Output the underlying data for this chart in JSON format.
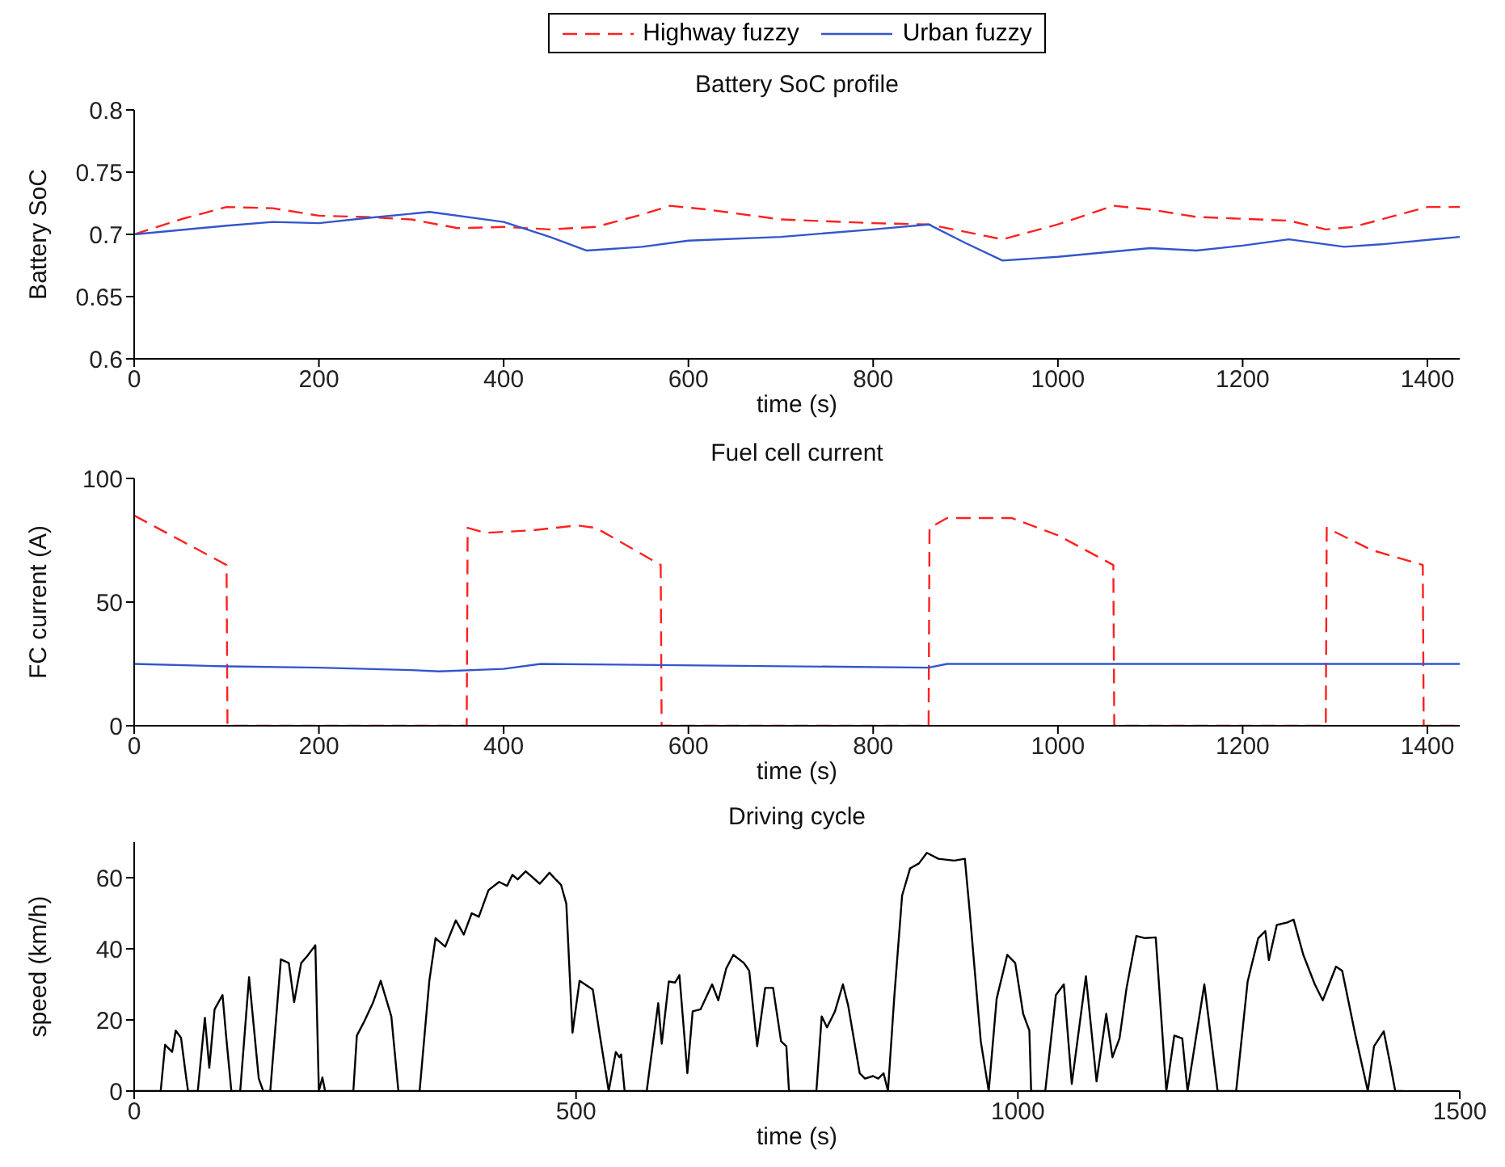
{
  "chart_data": [
    {
      "type": "line",
      "title": "Battery SoC profile",
      "xlabel": "time (s)",
      "ylabel": "Battery SoC",
      "xlim": [
        0,
        1435
      ],
      "xticks": [
        0,
        200,
        400,
        600,
        800,
        1000,
        1200,
        1400
      ],
      "ylim": [
        0.6,
        0.8
      ],
      "yticks": [
        0.6,
        0.65,
        0.7,
        0.75,
        0.8
      ],
      "legend": "top",
      "series": [
        {
          "name": "Highway fuzzy",
          "color": "#ff2020",
          "line_style": "dashed",
          "x": [
            0,
            50,
            100,
            150,
            200,
            250,
            300,
            350,
            400,
            450,
            500,
            550,
            580,
            620,
            700,
            800,
            860,
            900,
            940,
            1000,
            1060,
            1100,
            1150,
            1250,
            1290,
            1320,
            1400,
            1435
          ],
          "values": [
            0.7,
            0.712,
            0.722,
            0.721,
            0.715,
            0.714,
            0.712,
            0.705,
            0.706,
            0.704,
            0.706,
            0.716,
            0.723,
            0.72,
            0.712,
            0.709,
            0.708,
            0.702,
            0.696,
            0.708,
            0.723,
            0.72,
            0.714,
            0.711,
            0.704,
            0.706,
            0.722,
            0.722
          ]
        },
        {
          "name": "Urban fuzzy",
          "color": "#3355cc",
          "line_style": "solid",
          "x": [
            0,
            100,
            150,
            200,
            250,
            320,
            400,
            450,
            490,
            550,
            600,
            700,
            800,
            860,
            900,
            940,
            1000,
            1100,
            1150,
            1200,
            1250,
            1310,
            1350,
            1435
          ],
          "values": [
            0.7,
            0.707,
            0.71,
            0.709,
            0.713,
            0.718,
            0.71,
            0.698,
            0.687,
            0.69,
            0.695,
            0.698,
            0.704,
            0.708,
            0.693,
            0.679,
            0.682,
            0.689,
            0.687,
            0.691,
            0.696,
            0.69,
            0.692,
            0.698
          ]
        }
      ]
    },
    {
      "type": "line",
      "title": "Fuel cell current",
      "xlabel": "time (s)",
      "ylabel": "FC current (A)",
      "xlim": [
        0,
        1435
      ],
      "xticks": [
        0,
        200,
        400,
        600,
        800,
        1000,
        1200,
        1400
      ],
      "ylim": [
        0,
        100
      ],
      "yticks": [
        0,
        50,
        100
      ],
      "series": [
        {
          "color": "#ff2020",
          "line_style": "dashed",
          "x": [
            0,
            50,
            100,
            101,
            360,
            361,
            380,
            430,
            480,
            500,
            570,
            571,
            860,
            861,
            880,
            950,
            1000,
            1060,
            1061,
            1290,
            1291,
            1340,
            1395,
            1396,
            1435
          ],
          "values": [
            85,
            75,
            65,
            0,
            0,
            80,
            78,
            79,
            81,
            80,
            65,
            0,
            0,
            80,
            84,
            84,
            77,
            65,
            0,
            0,
            80,
            71,
            65,
            0,
            0
          ]
        },
        {
          "color": "#3355cc",
          "line_style": "solid",
          "x": [
            0,
            100,
            200,
            300,
            330,
            400,
            440,
            860,
            880,
            1435
          ],
          "values": [
            25,
            24,
            23.5,
            22.5,
            22,
            23,
            25,
            23.5,
            25,
            25
          ]
        }
      ]
    },
    {
      "type": "line",
      "title": "Driving cycle",
      "xlabel": "time (s)",
      "ylabel": "speed (km/h)",
      "xlim": [
        0,
        1500
      ],
      "xticks": [
        0,
        500,
        1000,
        1500
      ],
      "ylim": [
        0,
        70
      ],
      "yticks": [
        0,
        20,
        40,
        60
      ],
      "series": [
        {
          "color": "#000000",
          "line_style": "solid",
          "x": [
            0,
            30,
            35,
            43,
            47,
            53,
            59,
            61,
            72,
            80,
            85,
            91,
            100,
            104,
            110,
            120,
            130,
            141,
            146,
            154,
            166,
            175,
            181,
            189,
            196,
            205,
            209,
            213,
            216,
            248,
            252,
            260,
            270,
            279,
            285,
            291,
            299,
            323,
            334,
            341,
            352,
            364,
            373,
            382,
            390,
            401,
            413,
            422,
            428,
            434,
            443,
            459,
            470,
            477,
            483,
            489,
            496,
            504,
            519,
            527,
            537,
            545,
            549,
            551,
            555,
            580,
            593,
            597,
            605,
            612,
            617,
            626,
            632,
            641,
            654,
            661,
            670,
            678,
            690,
            696,
            705,
            714,
            723,
            732,
            738,
            741,
            772,
            778,
            784,
            793,
            802,
            808,
            821,
            827,
            836,
            842,
            848,
            853,
            860,
            869,
            878,
            888,
            897,
            910,
            928,
            940,
            946,
            958,
            967,
            976,
            988,
            997,
            1006,
            1013,
            1015,
            1031,
            1043,
            1052,
            1061,
            1077,
            1089,
            1100,
            1107,
            1115,
            1123,
            1134,
            1144,
            1156,
            1168,
            1177,
            1186,
            1192,
            1211,
            1226,
            1247,
            1260,
            1272,
            1280,
            1284,
            1293,
            1305,
            1312,
            1323,
            1336,
            1345,
            1360,
            1367,
            1382,
            1396,
            1403,
            1414,
            1421,
            1427,
            1436
          ],
          "values": [
            0,
            0,
            13,
            11,
            17,
            15,
            3.5,
            0,
            0,
            20.6,
            6.5,
            23,
            27,
            15.6,
            0,
            0,
            32,
            3.5,
            0,
            0,
            37,
            36,
            25,
            36,
            38,
            41,
            0,
            3.8,
            0,
            0,
            15.6,
            19.4,
            24.7,
            31,
            26,
            21,
            0,
            0,
            31,
            43,
            40.6,
            48,
            44,
            50,
            49,
            56.5,
            58.8,
            57.7,
            60.8,
            59.5,
            61.8,
            58.3,
            61.4,
            59.5,
            58,
            52.7,
            16.4,
            31,
            28.5,
            15.6,
            0,
            11,
            9.5,
            10.3,
            0,
            0,
            24.7,
            13.3,
            30.8,
            30.5,
            32.6,
            5,
            22.4,
            23,
            30,
            25.5,
            34.5,
            38.3,
            36,
            33.8,
            12.6,
            29,
            29,
            14,
            12.6,
            0,
            0,
            21,
            17.9,
            22.4,
            30,
            24,
            5,
            3.5,
            4.2,
            3.5,
            5,
            0,
            26,
            55,
            62.6,
            64,
            67,
            65.3,
            64.8,
            65.3,
            49,
            14,
            0,
            26,
            38.3,
            36,
            21.7,
            17,
            0,
            0,
            27,
            30,
            2,
            32.3,
            2.7,
            21.7,
            9.5,
            14.8,
            29,
            43.6,
            43,
            43.2,
            0,
            15.6,
            14.8,
            0,
            30,
            0,
            0,
            30.8,
            43,
            45,
            36.8,
            46.7,
            47.4,
            48.2,
            38.3,
            30,
            25.5,
            35,
            33.8,
            15.6,
            0,
            12.6,
            16.8,
            8,
            0,
            0
          ]
        }
      ]
    }
  ]
}
